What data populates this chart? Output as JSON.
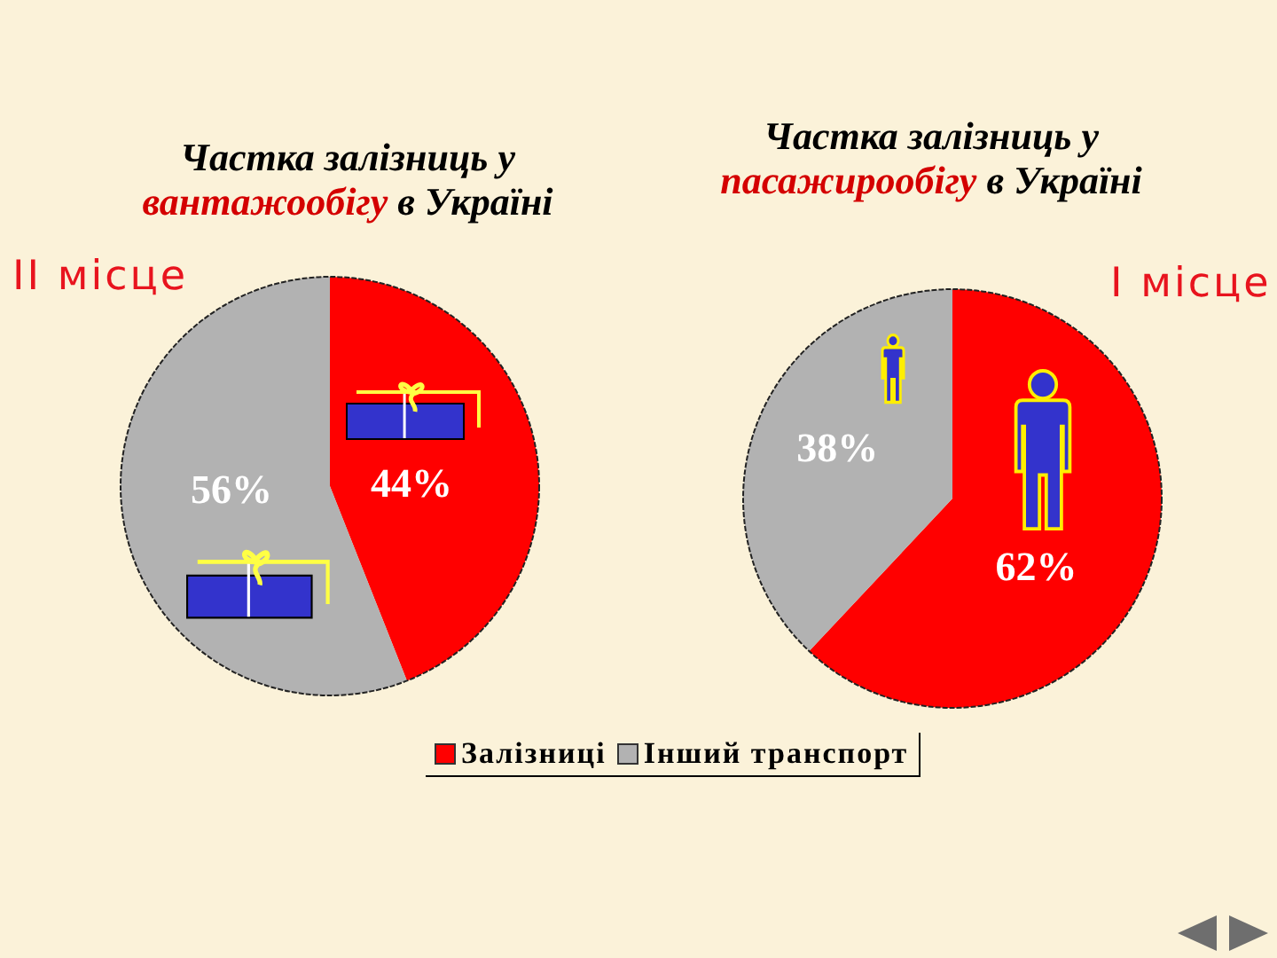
{
  "chart_data": [
    {
      "type": "pie",
      "title": "Частка залізниць у вантажообігу в Україні",
      "categories": [
        "Залізниці",
        "Інший транспорт"
      ],
      "values": [
        44,
        56
      ],
      "colors": [
        "#ff0000",
        "#b2b2b2"
      ],
      "value_labels": [
        "44%",
        "56%"
      ],
      "annotations": [
        "II місце"
      ],
      "legend": "bottom"
    },
    {
      "type": "pie",
      "title": "Частка залізниць у пасажирообігу в Україні",
      "categories": [
        null,
        null
      ],
      "values": [
        62,
        38
      ],
      "colors": [
        "#ff0000",
        "#b2b2b2"
      ],
      "value_labels": [
        "62%",
        "38%"
      ],
      "annotations": [
        "I місце"
      ]
    }
  ]
}
